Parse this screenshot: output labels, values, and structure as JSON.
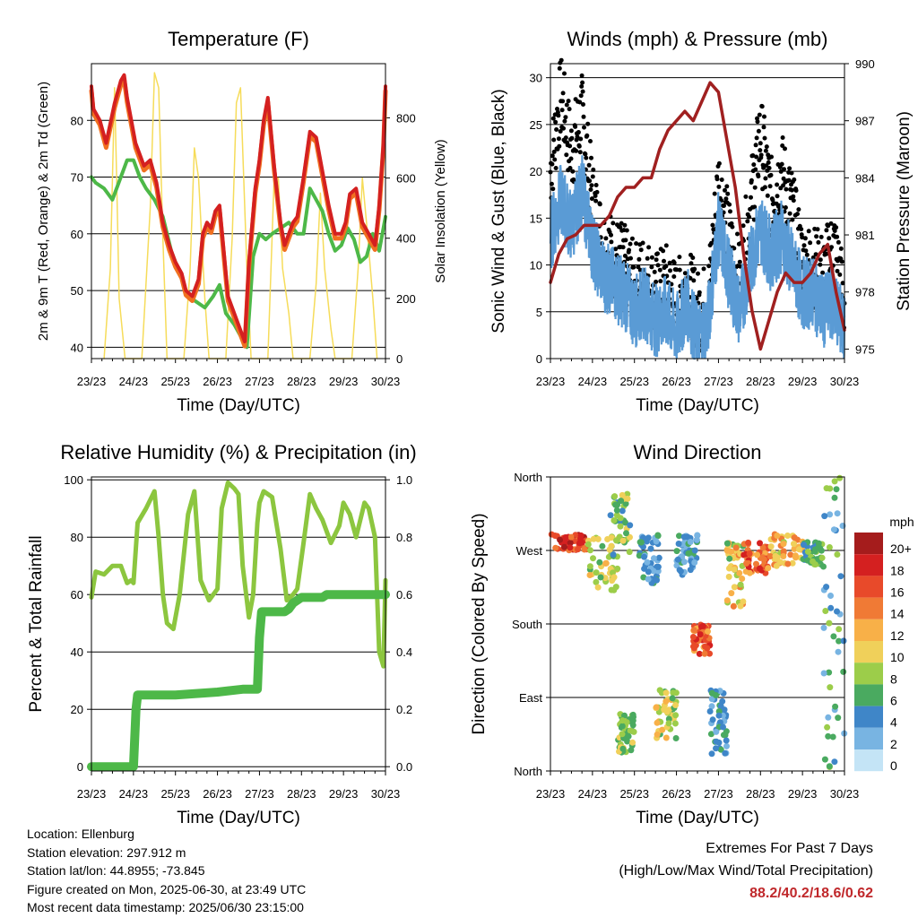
{
  "colors": {
    "temp2m": "#d42020",
    "temp9m": "#f07020",
    "dewpoint": "#4db848",
    "solar": "#f6dc5a",
    "wind": "#5a9bd5",
    "gust": "#000000",
    "pressure": "#a02020",
    "rh": "#8cc63f",
    "precip": "#4db848"
  },
  "chart_data": [
    {
      "type": "line",
      "title": "Temperature (F)",
      "xlabel": "Time (Day/UTC)",
      "ylabel": "2m & 9m T (Red, Orange) & 2m Td (Green)",
      "y2label": "Solar Insolation (Yellow)",
      "x_ticks": [
        "23/23",
        "24/23",
        "25/23",
        "26/23",
        "27/23",
        "28/23",
        "29/23",
        "30/23"
      ],
      "xlim": [
        0,
        7
      ],
      "ylim": [
        38,
        90
      ],
      "y_ticks": [
        40,
        50,
        60,
        70,
        80
      ],
      "y2lim": [
        0,
        980
      ],
      "y2_ticks": [
        0,
        200,
        400,
        600,
        800
      ],
      "grid": "horizontal",
      "series": [
        {
          "name": "2m T",
          "key": "temp2m",
          "x": [
            0,
            0.05,
            0.2,
            0.35,
            0.55,
            0.7,
            0.78,
            0.85,
            0.95,
            1.05,
            1.15,
            1.25,
            1.4,
            1.55,
            1.7,
            1.85,
            2.0,
            2.15,
            2.25,
            2.4,
            2.55,
            2.65,
            2.75,
            2.85,
            2.95,
            3.05,
            3.15,
            3.25,
            3.4,
            3.55,
            3.65,
            3.75,
            3.9,
            4.0,
            4.1,
            4.2,
            4.35,
            4.5,
            4.6,
            4.7,
            4.8,
            4.9,
            5.05,
            5.2,
            5.35,
            5.5,
            5.65,
            5.8,
            5.95,
            6.05,
            6.15,
            6.3,
            6.45,
            6.6,
            6.75,
            6.85,
            6.95,
            7.0
          ],
          "y": [
            86,
            82,
            80,
            76,
            83,
            87,
            88,
            84,
            80,
            76,
            74,
            72,
            73,
            69,
            62,
            58,
            55,
            53,
            50,
            49,
            52,
            60,
            62,
            61,
            64,
            65,
            57,
            49,
            46,
            43,
            41,
            55,
            68,
            73,
            80,
            84,
            72,
            62,
            58,
            60,
            62,
            63,
            70,
            78,
            77,
            71,
            65,
            60,
            60,
            62,
            67,
            68,
            62,
            60,
            58,
            65,
            76,
            86
          ]
        },
        {
          "name": "2m Td",
          "key": "dewpoint",
          "x": [
            0,
            0.1,
            0.3,
            0.5,
            0.7,
            0.85,
            1.0,
            1.15,
            1.3,
            1.5,
            1.7,
            1.9,
            2.1,
            2.3,
            2.5,
            2.7,
            2.9,
            3.05,
            3.2,
            3.4,
            3.55,
            3.7,
            3.85,
            4.0,
            4.15,
            4.3,
            4.5,
            4.7,
            4.9,
            5.05,
            5.2,
            5.35,
            5.5,
            5.65,
            5.8,
            5.95,
            6.1,
            6.25,
            6.4,
            6.55,
            6.7,
            6.85,
            7.0
          ],
          "y": [
            70,
            69,
            68,
            66,
            70,
            73,
            73,
            70,
            68,
            66,
            63,
            57,
            53,
            49,
            48,
            47,
            49,
            51,
            46,
            44,
            42,
            40,
            56,
            60,
            59,
            60,
            61,
            62,
            60,
            60,
            68,
            66,
            64,
            60,
            57,
            58,
            61,
            59,
            55,
            56,
            60,
            57,
            63
          ]
        },
        {
          "name": "Solar",
          "key": "solar",
          "x": [
            0.3,
            0.45,
            0.55,
            0.6,
            0.66,
            0.8,
            1.2,
            1.4,
            1.5,
            1.6,
            1.7,
            1.8,
            2.2,
            2.35,
            2.45,
            2.55,
            2.7,
            2.8,
            3.2,
            3.35,
            3.45,
            3.55,
            3.7,
            3.8,
            4.2,
            4.35,
            4.45,
            4.55,
            4.7,
            4.8,
            5.2,
            5.35,
            5.45,
            5.55,
            5.7,
            5.8,
            6.2,
            6.35,
            6.45,
            6.55,
            6.7,
            6.8
          ],
          "y": [
            0,
            300,
            900,
            600,
            200,
            0,
            0,
            500,
            950,
            900,
            400,
            0,
            0,
            300,
            700,
            600,
            200,
            0,
            0,
            400,
            850,
            900,
            300,
            0,
            0,
            600,
            600,
            300,
            150,
            0,
            0,
            250,
            550,
            300,
            100,
            0,
            0,
            300,
            600,
            450,
            200,
            0
          ]
        },
        {
          "name": "Solar2",
          "key": "solar",
          "x": [
            6.2,
            6.35,
            6.45,
            6.55,
            6.7,
            6.8,
            7.0
          ],
          "y": [
            0,
            0,
            0,
            0,
            0,
            0,
            0
          ]
        }
      ]
    },
    {
      "type": "scatter",
      "title": "Winds (mph) & Pressure (mb)",
      "xlabel": "Time (Day/UTC)",
      "ylabel": "Sonic Wind & Gust (Blue, Black)",
      "y2label": "Station Pressure (Maroon)",
      "x_ticks": [
        "23/23",
        "24/23",
        "25/23",
        "26/23",
        "27/23",
        "28/23",
        "29/23",
        "30/23"
      ],
      "xlim": [
        0,
        7
      ],
      "ylim": [
        0,
        31.5
      ],
      "y_ticks": [
        0,
        5,
        10,
        15,
        20,
        25,
        30
      ],
      "y2lim": [
        974.5,
        990
      ],
      "y2_ticks": [
        975,
        978,
        981,
        984,
        987,
        990
      ],
      "grid": "horizontal",
      "wind": {
        "x": [
          0,
          0.25,
          0.5,
          0.75,
          1.0,
          1.25,
          1.5,
          1.75,
          2.0,
          2.25,
          2.5,
          2.75,
          3.0,
          3.25,
          3.5,
          3.75,
          4.0,
          4.25,
          4.5,
          4.75,
          5.0,
          5.25,
          5.5,
          5.75,
          6.0,
          6.25,
          6.5,
          6.75,
          7.0
        ],
        "y": [
          13,
          17,
          14,
          18,
          12,
          9,
          8,
          7,
          5,
          6,
          4,
          5,
          3,
          6,
          2,
          4,
          14,
          9,
          5,
          10,
          14,
          11,
          13,
          10,
          7,
          7,
          5,
          6,
          3
        ]
      },
      "gust": {
        "x": [
          0,
          0.25,
          0.5,
          0.75,
          1.0,
          1.25,
          1.5,
          1.75,
          2.0,
          2.25,
          2.5,
          2.75,
          3.0,
          3.25,
          3.5,
          3.75,
          4.0,
          4.25,
          4.5,
          4.75,
          5.0,
          5.25,
          5.5,
          5.75,
          6.0,
          6.25,
          6.5,
          6.75,
          7.0
        ],
        "y": [
          20,
          28,
          22,
          26,
          17,
          12,
          11,
          10,
          8,
          9,
          7,
          8,
          6,
          8,
          5,
          6,
          19,
          13,
          8,
          16,
          24,
          17,
          20,
          16,
          10,
          10,
          9,
          12,
          6
        ]
      },
      "pressure": {
        "x": [
          0,
          0.2,
          0.4,
          0.6,
          0.8,
          1.0,
          1.2,
          1.4,
          1.6,
          1.8,
          2.0,
          2.2,
          2.4,
          2.6,
          2.8,
          3.0,
          3.2,
          3.4,
          3.6,
          3.8,
          4.0,
          4.2,
          4.4,
          4.6,
          4.8,
          5.0,
          5.2,
          5.4,
          5.6,
          5.8,
          6.0,
          6.2,
          6.4,
          6.6,
          6.8,
          7.0
        ],
        "y": [
          978.5,
          980,
          980.8,
          981,
          981.5,
          981.5,
          981.5,
          982,
          983,
          983.5,
          983.5,
          984,
          984,
          985.5,
          986.5,
          987,
          987.5,
          987,
          988,
          989,
          988.5,
          986,
          983.5,
          980,
          977,
          975,
          976.5,
          978,
          979,
          978.5,
          978.5,
          979,
          980,
          980.5,
          978,
          976
        ]
      }
    },
    {
      "type": "line",
      "title": "Relative Humidity (%) & Precipitation (in)",
      "xlabel": "Time (Day/UTC)",
      "ylabel": "Percent & Total Rainfall",
      "x_ticks": [
        "23/23",
        "24/23",
        "25/23",
        "26/23",
        "27/23",
        "28/23",
        "29/23",
        "30/23"
      ],
      "xlim": [
        0,
        7
      ],
      "ylim": [
        -1.5,
        101
      ],
      "y_ticks": [
        0,
        20,
        40,
        60,
        80,
        100
      ],
      "y2lim": [
        -0.015,
        1.01
      ],
      "y2_ticks": [
        0.0,
        0.2,
        0.4,
        0.6,
        0.8,
        1.0
      ],
      "grid": "horizontal",
      "rh": {
        "x": [
          0,
          0.1,
          0.3,
          0.5,
          0.7,
          0.85,
          0.95,
          1.0,
          1.1,
          1.3,
          1.5,
          1.6,
          1.7,
          1.8,
          1.95,
          2.1,
          2.3,
          2.45,
          2.6,
          2.8,
          3.0,
          3.1,
          3.25,
          3.4,
          3.5,
          3.6,
          3.75,
          3.85,
          3.95,
          4.0,
          4.1,
          4.3,
          4.5,
          4.65,
          4.8,
          4.9,
          5.05,
          5.2,
          5.35,
          5.5,
          5.7,
          5.9,
          6.0,
          6.15,
          6.3,
          6.5,
          6.6,
          6.75,
          6.85,
          6.95,
          7.0
        ],
        "y": [
          59,
          68,
          67,
          70,
          70,
          64,
          65,
          64,
          85,
          90,
          96,
          80,
          60,
          50,
          48,
          60,
          88,
          96,
          65,
          58,
          62,
          90,
          99,
          97,
          95,
          70,
          52,
          60,
          85,
          92,
          96,
          94,
          76,
          58,
          60,
          62,
          78,
          95,
          90,
          86,
          78,
          84,
          92,
          88,
          80,
          92,
          90,
          80,
          40,
          35,
          65
        ]
      },
      "precip": {
        "x": [
          0,
          1.0,
          1.03,
          1.06,
          1.1,
          2.0,
          3.0,
          3.6,
          3.95,
          3.98,
          4.0,
          4.05,
          4.6,
          4.7,
          4.8,
          5.0,
          5.5,
          5.6,
          6.0,
          6.5,
          7.0
        ],
        "y": [
          0,
          0,
          0.1,
          0.2,
          0.25,
          0.25,
          0.26,
          0.27,
          0.27,
          0.38,
          0.45,
          0.54,
          0.54,
          0.55,
          0.57,
          0.59,
          0.59,
          0.6,
          0.6,
          0.6,
          0.6
        ]
      }
    },
    {
      "type": "scatter",
      "title": "Wind Direction",
      "xlabel": "Time (Day/UTC)",
      "ylabel": "Direction (Colored By Speed)",
      "x_ticks": [
        "23/23",
        "24/23",
        "25/23",
        "26/23",
        "27/23",
        "28/23",
        "29/23",
        "30/23"
      ],
      "xlim": [
        0,
        7
      ],
      "ylim": [
        0,
        360
      ],
      "y_tick_labels": [
        "North",
        "East",
        "South",
        "West",
        "North"
      ],
      "grid": "horizontal",
      "legend_title": "mph",
      "legend_labels": [
        "20+",
        "18",
        "16",
        "14",
        "12",
        "10",
        "8",
        "6",
        "4",
        "2",
        "0"
      ],
      "legend_colors": [
        "#a51c1c",
        "#d42020",
        "#e84a2a",
        "#f07a35",
        "#f8b048",
        "#f0d05a",
        "#9ccd4a",
        "#4aaa60",
        "#3f86c8",
        "#78b4e2",
        "#c4e4f6"
      ],
      "clusters": [
        {
          "x": [
            0,
            0.9
          ],
          "dir": [
            270,
            290
          ],
          "speed": [
            14,
            20
          ]
        },
        {
          "x": [
            0.9,
            1.6
          ],
          "dir": [
            220,
            290
          ],
          "speed": [
            6,
            12
          ]
        },
        {
          "x": [
            1.4,
            1.9
          ],
          "dir": [
            260,
            340
          ],
          "speed": [
            4,
            10
          ]
        },
        {
          "x": [
            1.6,
            2.0
          ],
          "dir": [
            20,
            70
          ],
          "speed": [
            5,
            10
          ]
        },
        {
          "x": [
            2.1,
            2.6
          ],
          "dir": [
            230,
            290
          ],
          "speed": [
            2,
            6
          ]
        },
        {
          "x": [
            2.5,
            3.0
          ],
          "dir": [
            40,
            100
          ],
          "speed": [
            6,
            12
          ]
        },
        {
          "x": [
            3.0,
            3.5
          ],
          "dir": [
            240,
            290
          ],
          "speed": [
            2,
            6
          ]
        },
        {
          "x": [
            3.4,
            3.8
          ],
          "dir": [
            140,
            180
          ],
          "speed": [
            12,
            18
          ]
        },
        {
          "x": [
            3.8,
            4.2
          ],
          "dir": [
            20,
            100
          ],
          "speed": [
            2,
            6
          ]
        },
        {
          "x": [
            4.2,
            4.6
          ],
          "dir": [
            200,
            280
          ],
          "speed": [
            6,
            14
          ]
        },
        {
          "x": [
            4.6,
            5.2
          ],
          "dir": [
            240,
            280
          ],
          "speed": [
            12,
            18
          ]
        },
        {
          "x": [
            5.2,
            6.0
          ],
          "dir": [
            250,
            290
          ],
          "speed": [
            8,
            14
          ]
        },
        {
          "x": [
            6.0,
            6.5
          ],
          "dir": [
            250,
            280
          ],
          "speed": [
            4,
            8
          ]
        },
        {
          "x": [
            6.5,
            7.0
          ],
          "dir": [
            0,
            360
          ],
          "speed": [
            2,
            8
          ]
        }
      ]
    }
  ],
  "station": {
    "location": "Location: Ellenburg",
    "elevation": "Station elevation: 297.912 m",
    "latlon": "Station lat/lon: 44.8955; -73.845",
    "created": "Figure created on Mon, 2025-06-30, at 23:49 UTC",
    "recent": "Most recent data timestamp: 2025/06/30 23:15:00"
  },
  "extremes": {
    "title": "Extremes For Past 7 Days",
    "subtitle": "(High/Low/Max Wind/Total Precipitation)",
    "values": "88.2/40.2/18.6/0.62"
  }
}
